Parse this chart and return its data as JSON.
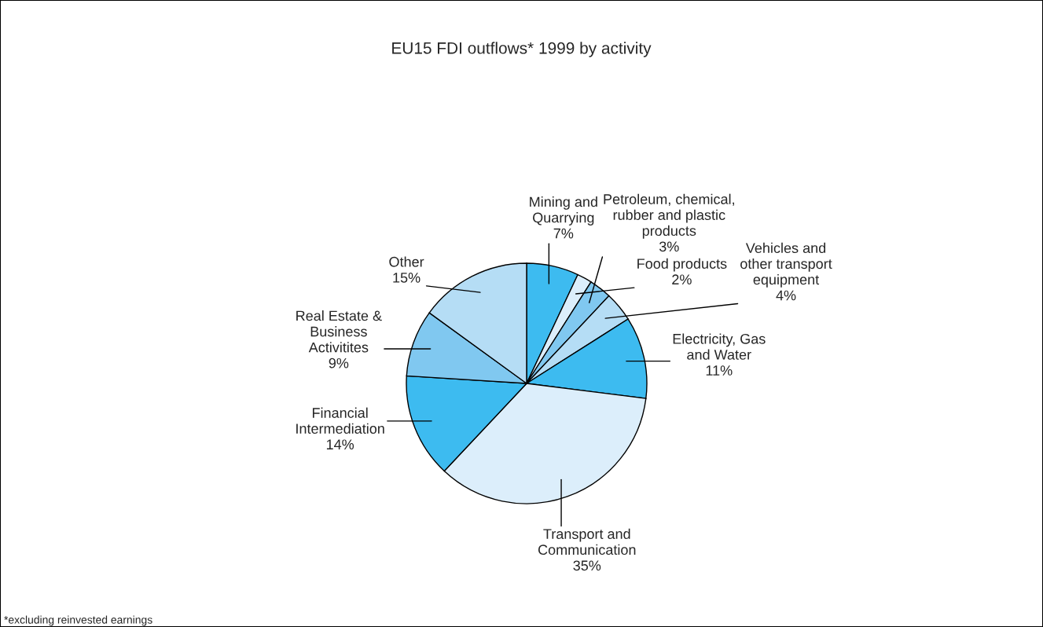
{
  "chart_data": {
    "type": "pie",
    "title": "EU15 FDI outflows* 1999 by activity",
    "categories": [
      "Mining and\nQuarrying",
      "Food products",
      "Petroleum, chemical,\nrubber and plastic\nproducts",
      "Vehicles and\nother transport\nequipment",
      "Electricity, Gas\nand Water",
      "Transport and\nCommunication",
      "Financial\nIntermediation",
      "Real Estate &\nBusiness\nActivitites",
      "Other"
    ],
    "values": [
      7,
      2,
      3,
      4,
      11,
      35,
      14,
      9,
      15
    ],
    "colors": [
      "#3dbbf0",
      "#dceefb",
      "#80c8f0",
      "#b5ddf5",
      "#3dbbf0",
      "#dceefb",
      "#3dbbf0",
      "#80c8f0",
      "#b5ddf5"
    ],
    "value_labels": [
      "7%",
      "2%",
      "3%",
      "4%",
      "11%",
      "35%",
      "14%",
      "9%",
      "15%"
    ],
    "annotations": [
      "*excluding reinvested earnings"
    ]
  }
}
